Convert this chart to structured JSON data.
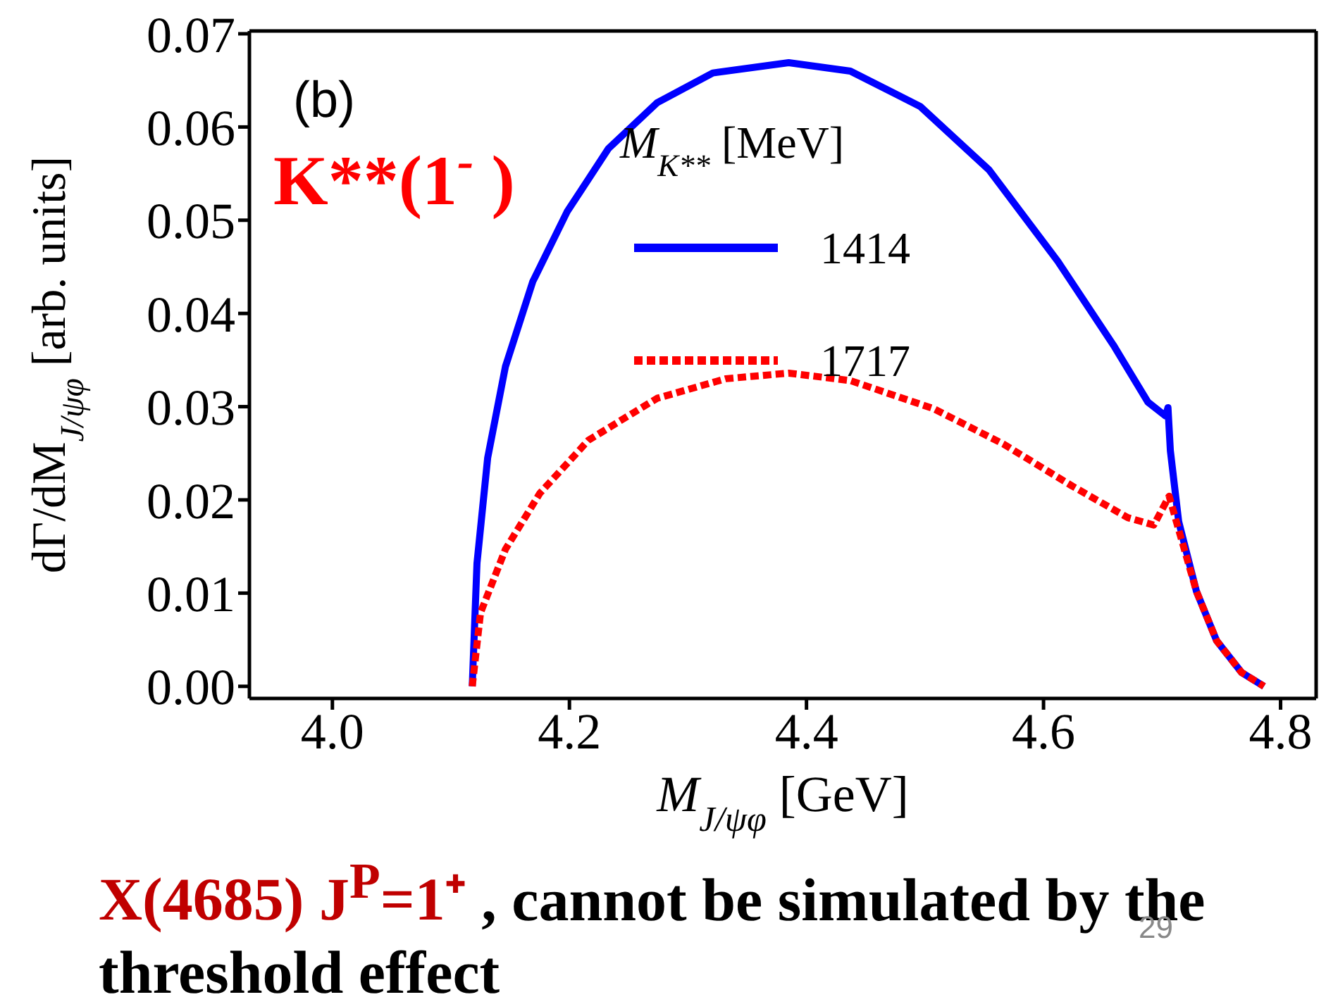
{
  "chart_data": {
    "type": "line",
    "xlabel": "M$_{J/ψφ}$ [GeV]",
    "ylabel": "dΓ/dM$_{J/ψφ}$ [arb. units]",
    "legend_title": "M$_{K**}$ [MeV]",
    "xlim": [
      3.93,
      4.83
    ],
    "xticks": [
      {
        "value": 4,
        "label": "4.0"
      },
      4.2,
      4.4,
      4.6,
      4.8
    ],
    "ylim": [
      -0.0013,
      0.0703
    ],
    "yticks": [
      {
        "value": 0,
        "label": "0.00"
      },
      0.01,
      0.02,
      0.03,
      0.04,
      0.05,
      0.06,
      0.07
    ],
    "legend": "top",
    "series": [
      {
        "name": "1414",
        "color": "#0000ff",
        "line_style": "solid",
        "x": [
          4.118,
          4.122,
          4.131,
          4.146,
          4.169,
          4.198,
          4.233,
          4.274,
          4.321,
          4.385,
          4.437,
          4.496,
          4.554,
          4.612,
          4.659,
          4.688,
          4.703,
          4.705,
          4.707,
          4.714,
          4.729,
          4.746,
          4.767,
          4.786
        ],
        "values": [
          0,
          0.0132,
          0.0245,
          0.0343,
          0.0434,
          0.0509,
          0.0577,
          0.0626,
          0.0658,
          0.0669,
          0.066,
          0.0622,
          0.0554,
          0.0456,
          0.0366,
          0.0305,
          0.029,
          0.0299,
          0.0253,
          0.0177,
          0.0102,
          0.0049,
          0.0015,
          0
        ]
      },
      {
        "name": "1717",
        "color": "#ff0000",
        "line_style": "dashed",
        "x": [
          4.118,
          4.125,
          4.146,
          4.175,
          4.216,
          4.274,
          4.332,
          4.385,
          4.437,
          4.507,
          4.566,
          4.624,
          4.671,
          4.693,
          4.706,
          4.712,
          4.729,
          4.746,
          4.767,
          4.786
        ],
        "values": [
          0,
          0.0079,
          0.0147,
          0.0207,
          0.0264,
          0.0309,
          0.033,
          0.0336,
          0.0328,
          0.0298,
          0.026,
          0.0215,
          0.0181,
          0.0173,
          0.0204,
          0.0177,
          0.0102,
          0.0049,
          0.0015,
          0
        ]
      }
    ],
    "annotations": [
      "(b)",
      "K**(1$^{-}$ )",
      "X(4685) J$^{P}$=1⁺",
      ", cannot be simulated by the threshold effect",
      "29"
    ]
  }
}
